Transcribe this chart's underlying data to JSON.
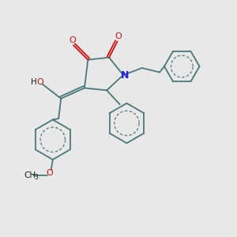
{
  "bg_color": "#e8e8e8",
  "bond_color": "#4a7878",
  "n_color": "#2020dd",
  "o_color": "#cc1111",
  "text_color": "#222222",
  "line_width": 1.3,
  "aromatic_lw": 0.85,
  "fig_size": [
    3.0,
    3.0
  ],
  "dpi": 100,
  "xlim": [
    -1.5,
    8.5
  ],
  "ylim": [
    -2.5,
    6.5
  ]
}
